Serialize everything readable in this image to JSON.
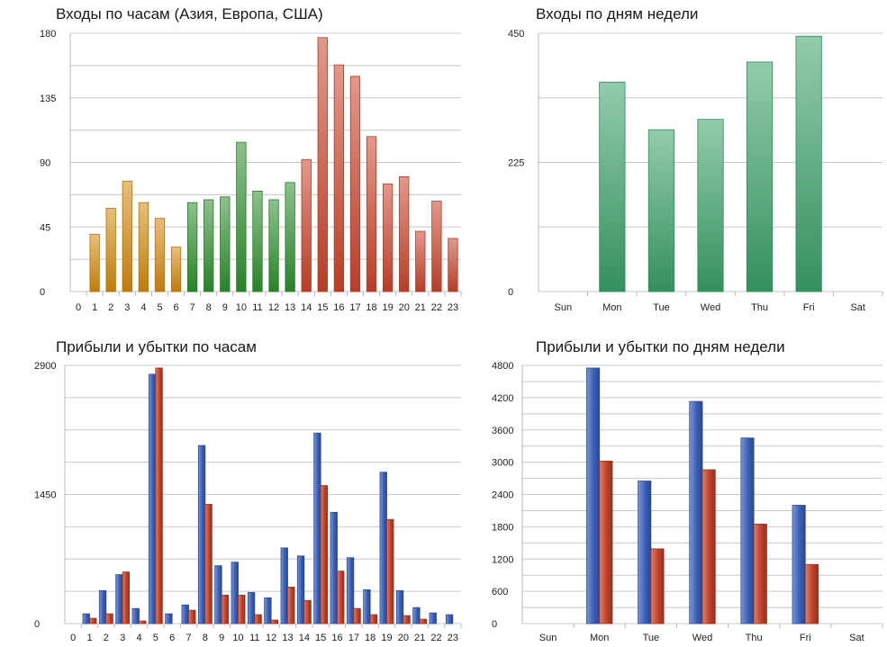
{
  "colors": {
    "asia": "#d38a0f",
    "europe": "#2f8f2f",
    "usa": "#c9452e",
    "weekday_bar": "#3aa06a",
    "profit": "#3a5fb8",
    "loss": "#c2412b"
  },
  "chart_data": [
    {
      "type": "bar",
      "title": "Входы по часам (Азия, Европа, США)",
      "categories": [
        "0",
        "1",
        "2",
        "3",
        "4",
        "5",
        "6",
        "7",
        "8",
        "9",
        "10",
        "11",
        "12",
        "13",
        "14",
        "15",
        "16",
        "17",
        "18",
        "19",
        "20",
        "21",
        "22",
        "23"
      ],
      "values": [
        0,
        40,
        58,
        77,
        62,
        51,
        31,
        62,
        64,
        66,
        104,
        70,
        64,
        76,
        92,
        177,
        158,
        150,
        108,
        75,
        80,
        42,
        63,
        37
      ],
      "groups": [
        "none",
        "asia",
        "asia",
        "asia",
        "asia",
        "asia",
        "asia",
        "europe",
        "europe",
        "europe",
        "europe",
        "europe",
        "europe",
        "europe",
        "usa",
        "usa",
        "usa",
        "usa",
        "usa",
        "usa",
        "usa",
        "usa",
        "usa",
        "usa"
      ],
      "yticks": [
        "0",
        "45",
        "90",
        "135",
        "180"
      ],
      "ylim": [
        0,
        180
      ],
      "grid": true
    },
    {
      "type": "bar",
      "title": "Входы по дням недели",
      "categories": [
        "Sun",
        "Mon",
        "Tue",
        "Wed",
        "Thu",
        "Fri",
        "Sat"
      ],
      "values": [
        0,
        365,
        282,
        300,
        400,
        445,
        0
      ],
      "yticks": [
        "0",
        "225",
        "450"
      ],
      "ylim": [
        0,
        450
      ],
      "grid": true
    },
    {
      "type": "bar",
      "title": "Прибыли и убытки по часам",
      "categories": [
        "0",
        "1",
        "2",
        "3",
        "4",
        "5",
        "6",
        "7",
        "8",
        "9",
        "10",
        "11",
        "12",
        "13",
        "14",
        "15",
        "16",
        "17",
        "18",
        "19",
        "20",
        "21",
        "22",
        "23"
      ],
      "series": [
        {
          "values": [
            0,
            110,
            370,
            550,
            170,
            2800,
            110,
            210,
            2000,
            650,
            690,
            350,
            290,
            850,
            760,
            2140,
            1250,
            740,
            380,
            1700,
            370,
            180,
            120,
            100
          ]
        },
        {
          "values": [
            0,
            60,
            110,
            580,
            30,
            2870,
            0,
            150,
            1340,
            320,
            320,
            100,
            40,
            410,
            260,
            1550,
            590,
            170,
            100,
            1170,
            90,
            50,
            0,
            0
          ]
        }
      ],
      "yticks": [
        "0",
        "1450",
        "2900"
      ],
      "ylim": [
        0,
        2900
      ],
      "grid": true
    },
    {
      "type": "bar",
      "title": "Прибыли и убытки по дням недели",
      "categories": [
        "Sun",
        "Mon",
        "Tue",
        "Wed",
        "Thu",
        "Fri",
        "Sat"
      ],
      "series": [
        {
          "values": [
            0,
            4750,
            2650,
            4130,
            3450,
            2200,
            0
          ]
        },
        {
          "values": [
            0,
            3020,
            1390,
            2860,
            1850,
            1100,
            0
          ]
        }
      ],
      "yticks": [
        "0",
        "600",
        "1200",
        "1800",
        "2400",
        "3000",
        "3600",
        "4200",
        "4800"
      ],
      "ylim": [
        0,
        4800
      ],
      "grid": true
    }
  ]
}
